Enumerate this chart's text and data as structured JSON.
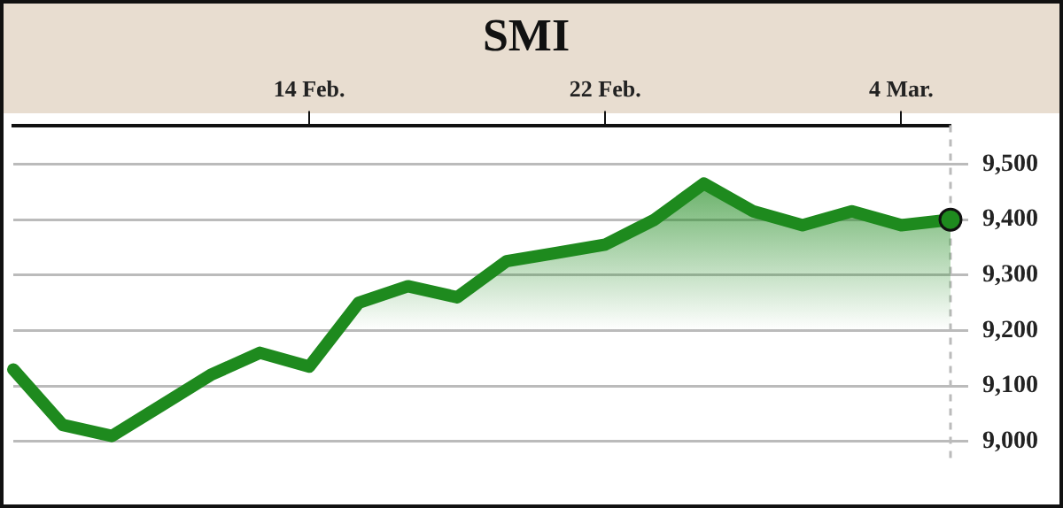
{
  "chart_data": {
    "type": "area",
    "title": "SMI",
    "categories": [
      null,
      null,
      null,
      null,
      null,
      null,
      "14 Feb.",
      null,
      null,
      null,
      null,
      null,
      "22 Feb.",
      null,
      null,
      null,
      null,
      null,
      "4 Mar.",
      null
    ],
    "series": [
      {
        "color": "#1e8a1e",
        "values": [
          9130,
          9030,
          9010,
          9065,
          9120,
          9160,
          9135,
          9250,
          9280,
          9260,
          9325,
          9340,
          9355,
          9400,
          9465,
          9415,
          9390,
          9415,
          9390,
          9400
        ]
      }
    ],
    "ylim": [
      8960,
      9570
    ],
    "yticks": [
      {
        "value": 9000,
        "label": "9,000"
      },
      {
        "value": 9100,
        "label": "9,100"
      },
      {
        "value": 9200,
        "label": "9,200"
      },
      {
        "value": 9300,
        "label": "9,300"
      },
      {
        "value": 9400,
        "label": "9,400"
      },
      {
        "value": 9500,
        "label": "9,500"
      }
    ],
    "grid": "y"
  }
}
